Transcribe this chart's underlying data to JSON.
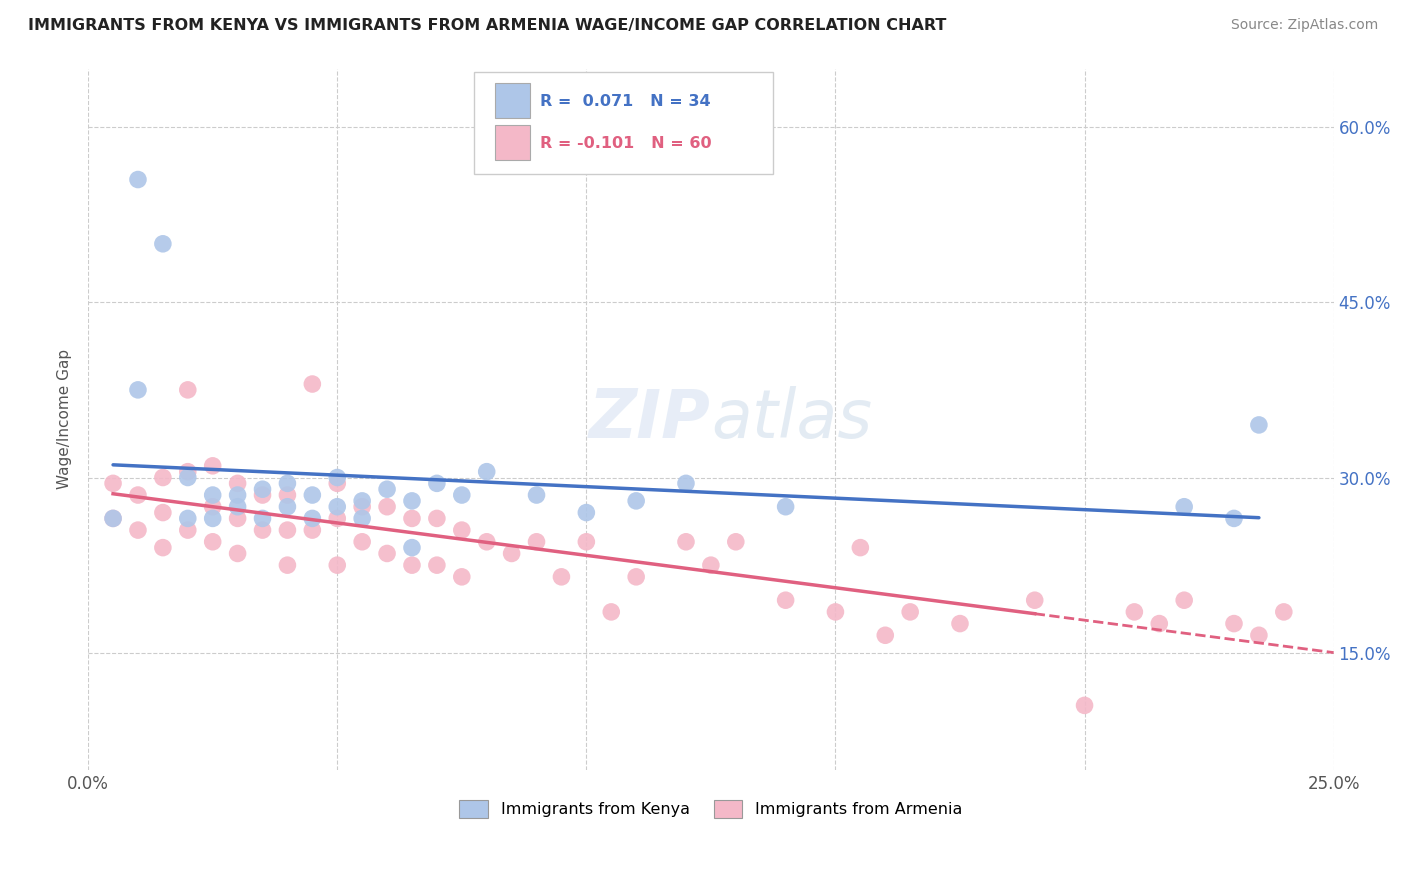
{
  "title": "IMMIGRANTS FROM KENYA VS IMMIGRANTS FROM ARMENIA WAGE/INCOME GAP CORRELATION CHART",
  "source": "Source: ZipAtlas.com",
  "xlabel_kenya": "Immigrants from Kenya",
  "xlabel_armenia": "Immigrants from Armenia",
  "ylabel": "Wage/Income Gap",
  "xlim": [
    0.0,
    0.25
  ],
  "ylim": [
    0.05,
    0.65
  ],
  "xtick_vals": [
    0.0,
    0.05,
    0.1,
    0.15,
    0.2,
    0.25
  ],
  "xtick_labels": [
    "0.0%",
    "",
    "",
    "",
    "",
    "25.0%"
  ],
  "ytick_vals": [
    0.15,
    0.3,
    0.45,
    0.6
  ],
  "ytick_labels": [
    "15.0%",
    "30.0%",
    "45.0%",
    "60.0%"
  ],
  "kenya_R": 0.071,
  "kenya_N": 34,
  "armenia_R": -0.101,
  "armenia_N": 60,
  "kenya_color": "#aec6e8",
  "armenia_color": "#f4b8c8",
  "kenya_line_color": "#4472c4",
  "armenia_line_color": "#e06080",
  "kenya_x": [
    0.005,
    0.01,
    0.015,
    0.02,
    0.02,
    0.025,
    0.03,
    0.03,
    0.035,
    0.04,
    0.04,
    0.045,
    0.045,
    0.05,
    0.05,
    0.055,
    0.06,
    0.065,
    0.07,
    0.075,
    0.08,
    0.09,
    0.1,
    0.11,
    0.12,
    0.14,
    0.22,
    0.23,
    0.235,
    0.01,
    0.025,
    0.035,
    0.055,
    0.065
  ],
  "kenya_y": [
    0.265,
    0.555,
    0.5,
    0.3,
    0.265,
    0.285,
    0.285,
    0.275,
    0.29,
    0.295,
    0.275,
    0.285,
    0.265,
    0.3,
    0.275,
    0.28,
    0.29,
    0.28,
    0.295,
    0.285,
    0.305,
    0.285,
    0.27,
    0.28,
    0.295,
    0.275,
    0.275,
    0.265,
    0.345,
    0.375,
    0.265,
    0.265,
    0.265,
    0.24
  ],
  "armenia_x": [
    0.005,
    0.005,
    0.01,
    0.01,
    0.015,
    0.015,
    0.015,
    0.02,
    0.02,
    0.02,
    0.025,
    0.025,
    0.025,
    0.03,
    0.03,
    0.03,
    0.035,
    0.035,
    0.04,
    0.04,
    0.04,
    0.045,
    0.045,
    0.05,
    0.05,
    0.05,
    0.055,
    0.055,
    0.06,
    0.06,
    0.065,
    0.065,
    0.07,
    0.07,
    0.075,
    0.075,
    0.08,
    0.085,
    0.09,
    0.095,
    0.1,
    0.105,
    0.11,
    0.12,
    0.125,
    0.13,
    0.14,
    0.15,
    0.155,
    0.16,
    0.165,
    0.175,
    0.19,
    0.2,
    0.21,
    0.215,
    0.22,
    0.23,
    0.235,
    0.24
  ],
  "armenia_y": [
    0.295,
    0.265,
    0.285,
    0.255,
    0.3,
    0.27,
    0.24,
    0.305,
    0.375,
    0.255,
    0.31,
    0.275,
    0.245,
    0.295,
    0.265,
    0.235,
    0.285,
    0.255,
    0.285,
    0.255,
    0.225,
    0.38,
    0.255,
    0.295,
    0.265,
    0.225,
    0.275,
    0.245,
    0.275,
    0.235,
    0.265,
    0.225,
    0.265,
    0.225,
    0.255,
    0.215,
    0.245,
    0.235,
    0.245,
    0.215,
    0.245,
    0.185,
    0.215,
    0.245,
    0.225,
    0.245,
    0.195,
    0.185,
    0.24,
    0.165,
    0.185,
    0.175,
    0.195,
    0.105,
    0.185,
    0.175,
    0.195,
    0.175,
    0.165,
    0.185
  ]
}
